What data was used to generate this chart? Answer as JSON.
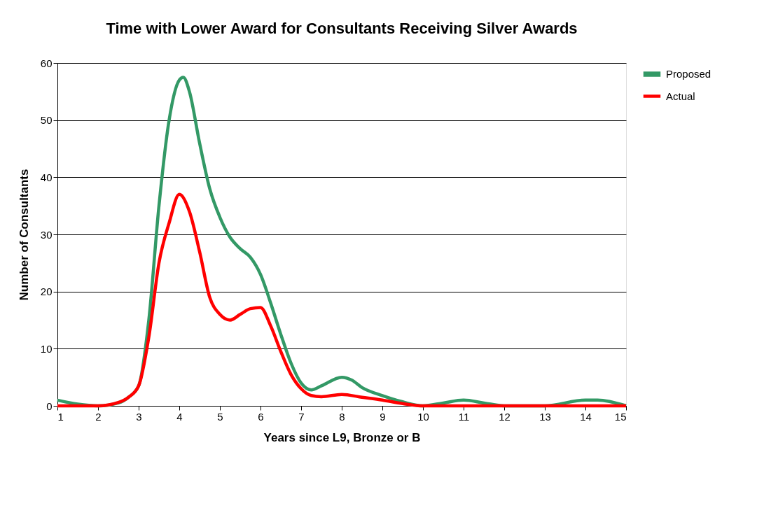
{
  "chart_data": {
    "type": "line",
    "title": "Time with Lower Award for Consultants Receiving Silver Awards",
    "xlabel": "Years since L9, Bronze or B",
    "ylabel": "Number of Consultants",
    "xlim": [
      1,
      15
    ],
    "xticks": [
      1,
      2,
      3,
      4,
      5,
      6,
      7,
      8,
      9,
      10,
      11,
      12,
      13,
      14,
      15
    ],
    "ylim": [
      0,
      60
    ],
    "yticks": [
      0,
      10,
      20,
      30,
      40,
      50,
      60
    ],
    "grid": "y",
    "legend": "right",
    "marker": "none",
    "line_style": "solid",
    "series": [
      {
        "name": "Proposed",
        "color": "#339966",
        "x": [
          1,
          1.5,
          2,
          2.5,
          2.75,
          3,
          3.25,
          3.5,
          3.75,
          4,
          4.1,
          4.25,
          4.5,
          4.75,
          5,
          5.25,
          5.5,
          5.75,
          6,
          6.25,
          6.5,
          6.75,
          7,
          7.25,
          7.5,
          8,
          8.25,
          8.5,
          9,
          9.5,
          10,
          10.5,
          11,
          11.5,
          12,
          13,
          14,
          14.3,
          15
        ],
        "values": [
          1,
          0.3,
          0,
          0.5,
          1.5,
          3.5,
          15,
          35,
          50,
          57,
          57.5,
          55,
          46,
          38,
          33,
          29.5,
          27.5,
          26,
          23,
          18,
          12.5,
          7.5,
          4,
          2.8,
          3.5,
          5,
          4.5,
          3.2,
          1.8,
          0.7,
          0,
          0.5,
          1,
          0.5,
          0,
          0,
          1,
          1,
          0
        ]
      },
      {
        "name": "Actual",
        "color": "#ff0000",
        "x": [
          1,
          2,
          2.5,
          2.75,
          3,
          3.25,
          3.5,
          3.75,
          4,
          4.25,
          4.5,
          4.75,
          5,
          5.25,
          5.5,
          5.75,
          6,
          6.25,
          6.5,
          6.75,
          7,
          7.25,
          7.5,
          8,
          8.5,
          9,
          9.5,
          10,
          15
        ],
        "values": [
          0,
          0,
          0.6,
          1.5,
          3.5,
          12,
          25,
          32,
          37,
          34,
          27,
          19,
          16,
          15,
          16,
          17,
          17.2,
          14,
          9.5,
          5.5,
          3,
          1.8,
          1.6,
          2,
          1.5,
          1,
          0.4,
          0,
          0
        ]
      }
    ]
  }
}
